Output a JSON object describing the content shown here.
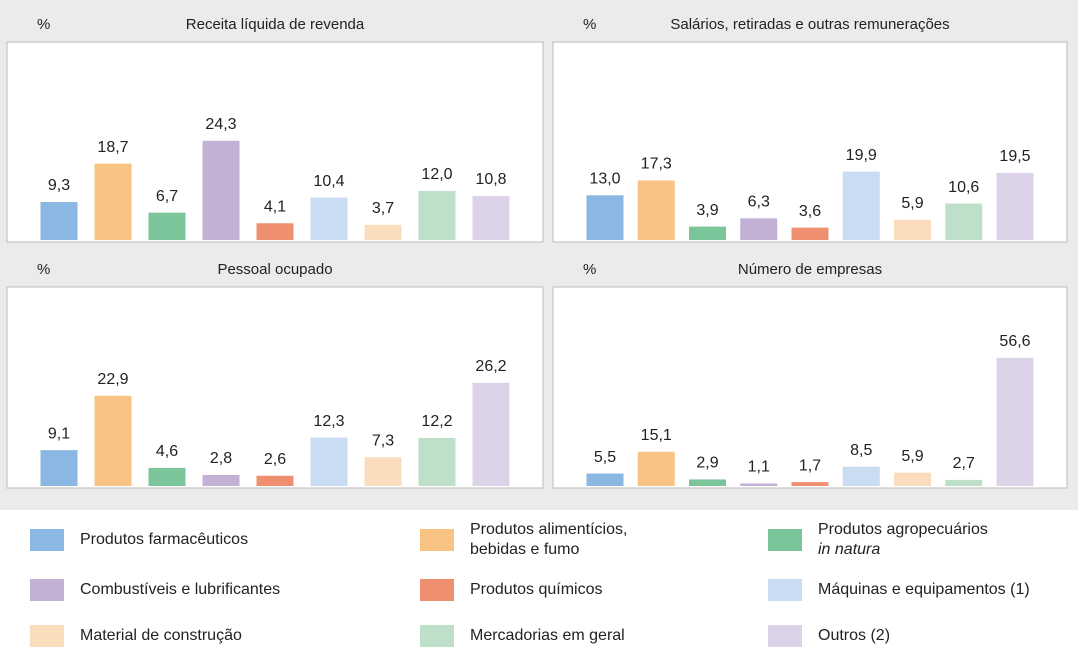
{
  "chart_data": [
    {
      "type": "bar",
      "title": "Receita líquida de revenda",
      "ylabel": "%",
      "values": [
        9.3,
        18.7,
        6.7,
        24.3,
        4.1,
        10.4,
        3.7,
        12.0,
        10.8
      ],
      "value_labels": [
        "9,3",
        "18,7",
        "6,7",
        "24,3",
        "4,1",
        "10,4",
        "3,7",
        "12,0",
        "10,8"
      ],
      "ylim": [
        0,
        48
      ]
    },
    {
      "type": "bar",
      "title": "Salários, retiradas e outras remunerações",
      "ylabel": "%",
      "values": [
        13.0,
        17.3,
        3.9,
        6.3,
        3.6,
        19.9,
        5.9,
        10.6,
        19.5
      ],
      "value_labels": [
        "13,0",
        "17,3",
        "3,9",
        "6,3",
        "3,6",
        "19,9",
        "5,9",
        "10,6",
        "19,5"
      ],
      "ylim": [
        0,
        57
      ]
    },
    {
      "type": "bar",
      "title": "Pessoal ocupado",
      "ylabel": "%",
      "values": [
        9.1,
        22.9,
        4.6,
        2.8,
        2.6,
        12.3,
        7.3,
        12.2,
        26.2
      ],
      "value_labels": [
        "9,1",
        "22,9",
        "4,6",
        "2,8",
        "2,6",
        "12,3",
        "7,3",
        "12,2",
        "26,2"
      ],
      "ylim": [
        0,
        50
      ]
    },
    {
      "type": "bar",
      "title": "Número de empresas",
      "ylabel": "%",
      "values": [
        5.5,
        15.1,
        2.9,
        1.1,
        1.7,
        8.5,
        5.9,
        2.7,
        56.6
      ],
      "value_labels": [
        "5,5",
        "15,1",
        "2,9",
        "1,1",
        "1,7",
        "8,5",
        "5,9",
        "2,7",
        "56,6"
      ],
      "ylim": [
        0,
        87
      ]
    }
  ],
  "legend": [
    {
      "lines": [
        "Produtos farmacêuticos"
      ],
      "color": "#8ab8e2"
    },
    {
      "lines": [
        "Produtos alimentícios,",
        "bebidas e fumo"
      ],
      "color": "#f8c383"
    },
    {
      "lines": [
        "Produtos agropecuários",
        "in natura"
      ],
      "italic": [
        false,
        true
      ],
      "color": "#7cc59a"
    },
    {
      "lines": [
        "Combustíveis e lubrificantes"
      ],
      "color": "#c2b1d5"
    },
    {
      "lines": [
        "Produtos químicos"
      ],
      "color": "#ee9070"
    },
    {
      "lines": [
        "Máquinas e equipamentos (1)"
      ],
      "color": "#c9dcf1"
    },
    {
      "lines": [
        "Material de construção"
      ],
      "color": "#fbdcbd"
    },
    {
      "lines": [
        "Mercadorias em geral"
      ],
      "color": "#bedfc8"
    },
    {
      "lines": [
        "Outros (2)"
      ],
      "color": "#dcd3e8"
    }
  ]
}
